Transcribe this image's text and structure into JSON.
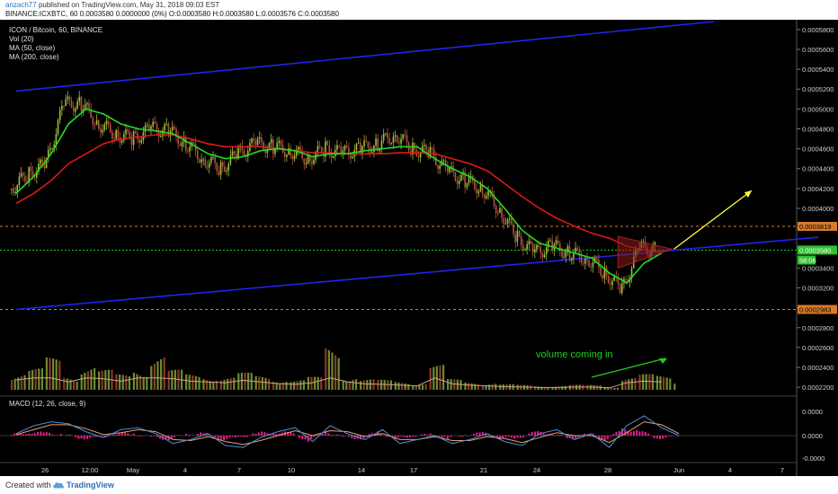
{
  "header": {
    "author": "anzach77",
    "published_text": "published on TradingView.com, May 31, 2018 09:03 EST",
    "quote_line": "BINANCE:ICXBTC, 60  O:0.0003580 H:0.0003580 L:0.0003576 C:0.0003580 0.0000000 (0%)",
    "quote_line_display": "BINANCE:ICXBTC, 60  0.0003580 0.0000000 (0%) O:0.0003580 H:0.0003580 L:0.0003576 C:0.0003580"
  },
  "footer": {
    "created_with": "Created with",
    "brand": "TradingView",
    "logo_icon": "tradingview-cloud-icon"
  },
  "colors": {
    "background": "#000000",
    "candle_up": "#9bbf3a",
    "candle_down": "#b3523f",
    "ma50": "#22dd22",
    "ma200": "#e01818",
    "trend_lines": "#2222ee",
    "projection_arrow": "#ffff33",
    "volume_annotation": "#22cc22",
    "resistance_line": "#d87a2a",
    "current_price_line": "#22cc22",
    "macd_line": "#4a90d9",
    "signal_line": "#e8a070",
    "macd_hist": "#e0208a",
    "triangle_fill": "#8a1a1a"
  },
  "chart_data": {
    "type": "line",
    "symbol": "ICON / Bitcoin, 60, BINANCE",
    "legend": [
      "ICON / Bitcoin, 60, BINANCE",
      "Vol (20)",
      "MA (50, close)",
      "MA (200, close)"
    ],
    "x_tick_labels": [
      "26",
      "12:00",
      "May",
      "4",
      "7",
      "10",
      "14",
      "17",
      "21",
      "24",
      "28",
      "Jun",
      "4",
      "7"
    ],
    "y_tick_labels": [
      "0.0005800",
      "0.0005600",
      "0.0005400",
      "0.0005200",
      "0.0005000",
      "0.0004800",
      "0.0004600",
      "0.0004400",
      "0.0004200",
      "0.0004000",
      "0.0003800",
      "0.0003600",
      "0.0003400",
      "0.0003200",
      "0.0003000",
      "0.0002800",
      "0.0002600",
      "0.0002400",
      "0.0002200"
    ],
    "ylim": [
      0.000212,
      0.000588
    ],
    "price_labels": [
      {
        "text": "0.0003819",
        "value": 0.0003819,
        "kind": "resistance"
      },
      {
        "text": "0.0003580",
        "value": 0.000358,
        "kind": "current"
      },
      {
        "text": "58:06",
        "value": 0.000348,
        "kind": "countdown"
      },
      {
        "text": "0.0002983",
        "value": 0.0002983,
        "kind": "support"
      }
    ],
    "trend_channel": {
      "upper": [
        [
          "Apr 24",
          0.000518
        ],
        [
          "Jun 2",
          0.000588
        ]
      ],
      "lower": [
        [
          "Apr 24",
          0.0002983
        ],
        [
          "Jun 8",
          0.000371
        ]
      ]
    },
    "price_line": {
      "x": [
        "Apr 24",
        "Apr 25",
        "Apr 26",
        "Apr 27",
        "Apr 28",
        "Apr 29",
        "Apr 30",
        "May 1",
        "May 2",
        "May 3",
        "May 4",
        "May 5",
        "May 6",
        "May 7",
        "May 8",
        "May 9",
        "May 10",
        "May 11",
        "May 12",
        "May 13",
        "May 14",
        "May 15",
        "May 16",
        "May 17",
        "May 18",
        "May 19",
        "May 20",
        "May 21",
        "May 22",
        "May 23",
        "May 24",
        "May 25",
        "May 26",
        "May 27",
        "May 28",
        "May 29",
        "May 30",
        "May 31"
      ],
      "close": [
        0.00042,
        0.000435,
        0.000445,
        0.000505,
        0.000505,
        0.000485,
        0.000475,
        0.00047,
        0.00048,
        0.000478,
        0.000465,
        0.00045,
        0.00044,
        0.000455,
        0.000465,
        0.000462,
        0.000458,
        0.00045,
        0.00046,
        0.000455,
        0.00046,
        0.000465,
        0.000475,
        0.00046,
        0.000455,
        0.000437,
        0.000428,
        0.00042,
        0.000398,
        0.00037,
        0.000355,
        0.000362,
        0.000355,
        0.00035,
        0.000335,
        0.000318,
        0.00036,
        0.000358
      ],
      "ma50": [
        0.000415,
        0.000432,
        0.000455,
        0.000485,
        0.0005,
        0.000495,
        0.000485,
        0.00048,
        0.000478,
        0.000475,
        0.000465,
        0.000455,
        0.00045,
        0.000452,
        0.000458,
        0.00046,
        0.000458,
        0.000452,
        0.000455,
        0.000455,
        0.000458,
        0.00046,
        0.000462,
        0.000462,
        0.00045,
        0.00044,
        0.000432,
        0.00042,
        0.0004,
        0.000378,
        0.000365,
        0.00036,
        0.000355,
        0.00035,
        0.000335,
        0.000325,
        0.000345,
        0.000355
      ],
      "ma200": [
        0.000405,
        0.000415,
        0.000428,
        0.000445,
        0.000455,
        0.000465,
        0.00047,
        0.000472,
        0.000474,
        0.000474,
        0.00047,
        0.000465,
        0.000462,
        0.000462,
        0.000462,
        0.00046,
        0.000458,
        0.000456,
        0.000456,
        0.000455,
        0.000455,
        0.000455,
        0.000456,
        0.000456,
        0.000455,
        0.00045,
        0.000445,
        0.000438,
        0.000425,
        0.000412,
        0.0004,
        0.00039,
        0.000382,
        0.000375,
        0.00037,
        0.000362,
        0.000358,
        0.000356
      ]
    },
    "volume_bars_relative": [
      0.25,
      0.3,
      0.45,
      0.2,
      0.35,
      0.28,
      0.22,
      0.3,
      0.5,
      0.28,
      0.22,
      0.2,
      0.18,
      0.24,
      0.2,
      0.16,
      0.14,
      0.18,
      0.62,
      0.2,
      0.15,
      0.14,
      0.12,
      0.1,
      0.35,
      0.15,
      0.12,
      0.1,
      0.08,
      0.07,
      0.06,
      0.06,
      0.07,
      0.07,
      0.05,
      0.18,
      0.22,
      0.2,
      0.12
    ],
    "annotations": {
      "volume_text": "volume coming in"
    },
    "macd": {
      "label": "MACD (12, 26, close, 9)",
      "y_tick_labels": [
        "0.0000",
        "0.0000",
        "-0.0000"
      ],
      "macd_line_relative": [
        0.1,
        0.5,
        0.7,
        0.6,
        0.2,
        -0.1,
        0.3,
        0.4,
        0.1,
        -0.4,
        -0.2,
        0.1,
        -0.5,
        -0.6,
        -0.1,
        0.2,
        0.4,
        -0.3,
        0.5,
        0.1,
        -0.2,
        0.3,
        -0.4,
        -0.2,
        0.0,
        -0.4,
        -0.2,
        0.1,
        -0.3,
        -0.5,
        0.1,
        0.3,
        -0.2,
        0.1,
        -0.6,
        0.5,
        1.0,
        0.4,
        0.0
      ],
      "signal_line_relative": [
        0.05,
        0.3,
        0.55,
        0.55,
        0.35,
        0.05,
        0.15,
        0.3,
        0.2,
        -0.2,
        -0.25,
        -0.05,
        -0.3,
        -0.45,
        -0.25,
        0.0,
        0.25,
        0.0,
        0.25,
        0.2,
        -0.05,
        0.1,
        -0.2,
        -0.2,
        -0.05,
        -0.25,
        -0.25,
        -0.05,
        -0.15,
        -0.35,
        -0.1,
        0.15,
        0.0,
        0.0,
        -0.35,
        0.15,
        0.7,
        0.55,
        0.1
      ]
    }
  }
}
